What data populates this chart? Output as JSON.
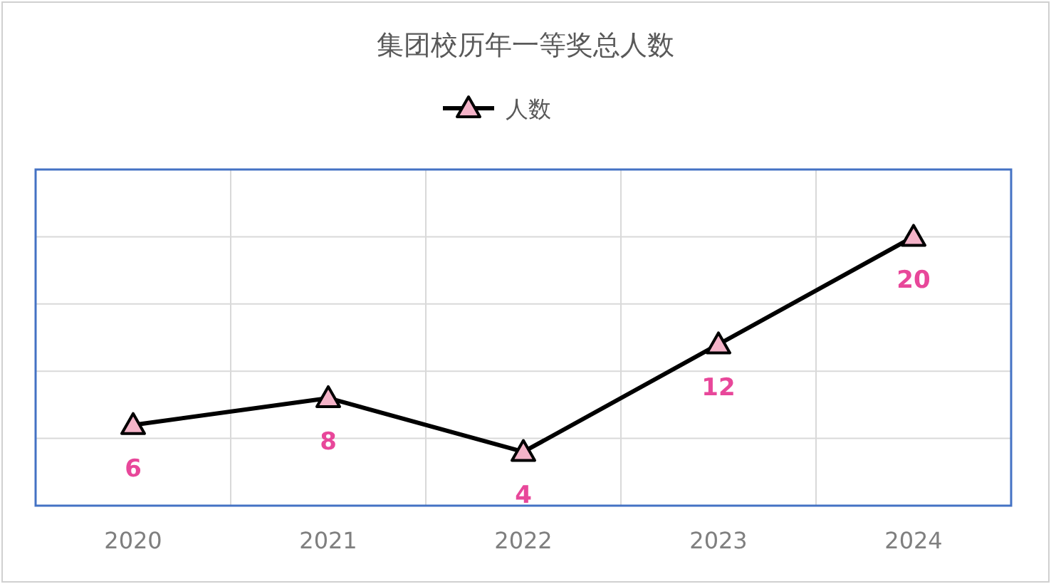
{
  "chart_data": {
    "type": "line",
    "title": "集团校历年一等奖总人数",
    "categories": [
      "2020",
      "2021",
      "2022",
      "2023",
      "2024"
    ],
    "series": [
      {
        "name": "人数",
        "color": "#000000",
        "values": [
          6,
          8,
          4,
          12,
          20
        ]
      }
    ],
    "marker": "triangle",
    "line_style": "solid",
    "data_labels": true,
    "legend": "top",
    "grid": true,
    "ylim": [
      0,
      25
    ],
    "yticks": [
      0,
      5,
      10,
      15,
      20,
      25
    ],
    "tick_labels": "x"
  }
}
